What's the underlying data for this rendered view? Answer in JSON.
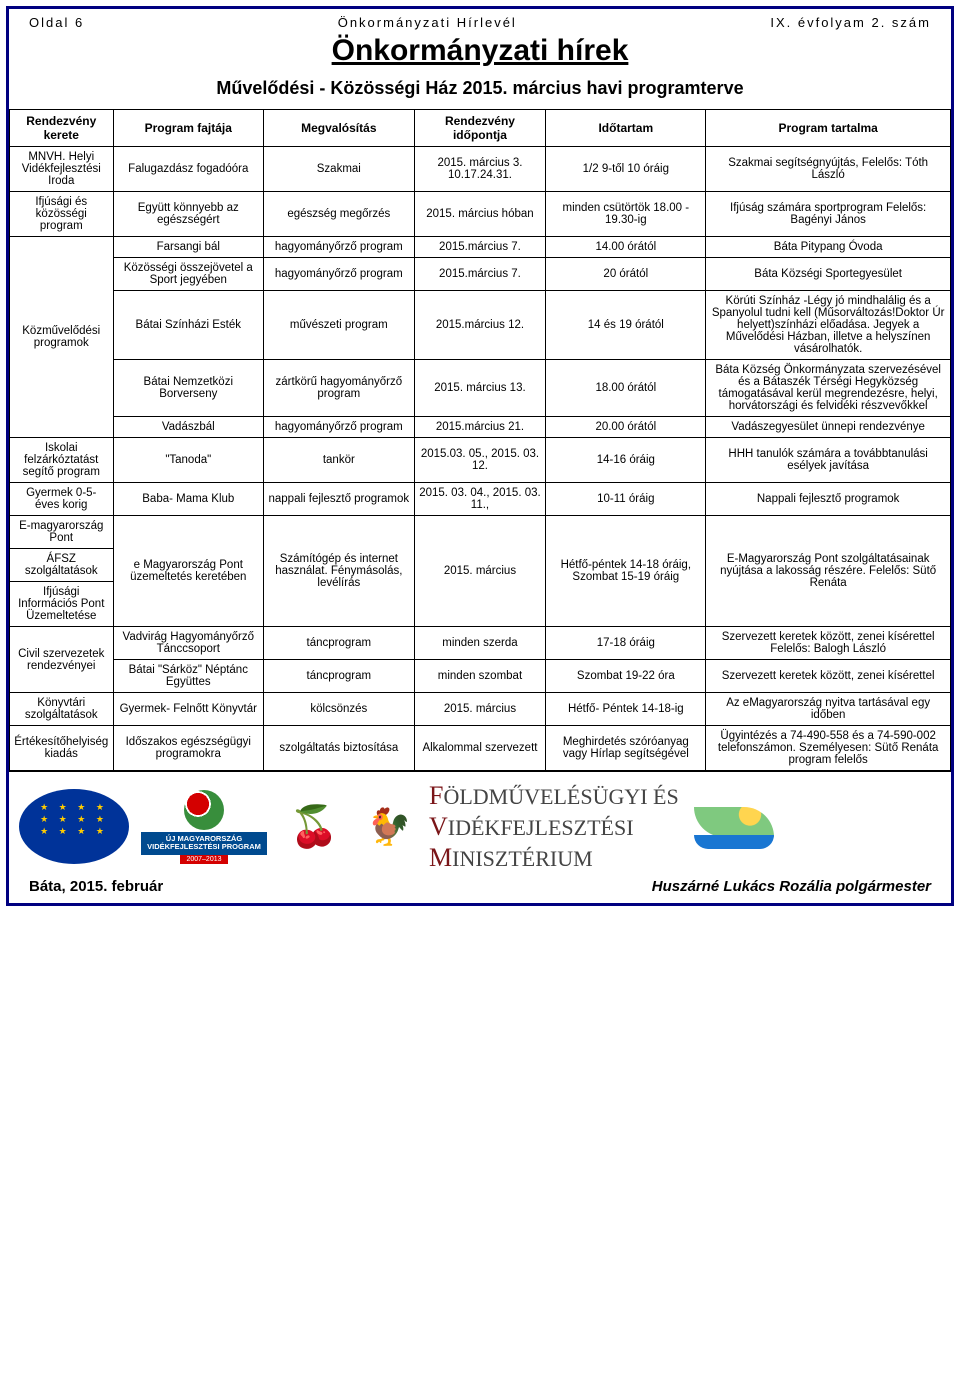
{
  "header": {
    "page_label": "Oldal 6",
    "center": "Önkormányzati Hírlevél",
    "issue": "IX. évfolyam 2. szám"
  },
  "title": "Önkormányzati hírek",
  "subtitle": "Művelődési - Közösségi Ház 2015. március havi programterve",
  "columns": [
    "Rendezvény kerete",
    "Program fajtája",
    "Megvalósítás",
    "Rendezvény időpontja",
    "Időtartam",
    "Program tartalma"
  ],
  "rows": [
    {
      "kerete": "MNVH. Helyi Vidékfejlesztési Iroda",
      "fajta": "Falugazdász fogadóóra",
      "megv": "Szakmai",
      "ido": "2015. március 3. 10.17.24.31.",
      "tartam": "1/2 9-től 10 óráig",
      "tartalma": "Szakmai segítségnyújtás, Felelős: Tóth László"
    },
    {
      "kerete": "Ifjúsági és közösségi program",
      "fajta": "Együtt könnyebb az egészségért",
      "megv": "egészség megőrzés",
      "ido": "2015. március hóban",
      "tartam": "minden csütörtök 18.00 - 19.30-ig",
      "tartalma": "Ifjúság számára sportprogram Felelős: Bagényi János"
    }
  ],
  "koz_kerete": "Közművelődési programok",
  "koz_rows": [
    {
      "fajta": "Farsangi bál",
      "megv": "hagyományőrző program",
      "ido": "2015.március 7.",
      "tartam": "14.00 órától",
      "tartalma": "Báta Pitypang Óvoda"
    },
    {
      "fajta": "Közösségi összejövetel a Sport jegyében",
      "megv": "hagyományőrző program",
      "ido": "2015.március 7.",
      "tartam": "20 órától",
      "tartalma": "Báta Községi Sportegyesület"
    },
    {
      "fajta": "Bátai Színházi Esték",
      "megv": "művészeti program",
      "ido": "2015.március 12.",
      "tartam": "14 és 19 órától",
      "tartalma": "Körúti Színház -Légy jó mindhalálig és a Spanyolul tudni kell (Műsorváltozás!Doktor Úr helyett)színházi előadása. Jegyek a Művelődési Házban, illetve a helyszínen vásárolhatók."
    },
    {
      "fajta": "Bátai Nemzetközi Borverseny",
      "megv": "zártkörű hagyományőrző program",
      "ido": "2015. március 13.",
      "tartam": "18.00 órától",
      "tartalma": "Báta Község Önkormányzata szervezésével és a Bátaszék Térségi Hegyközség támogatásával kerül megrendezésre, helyi, horvátországi és felvidéki részvevőkkel"
    },
    {
      "fajta": "Vadászbál",
      "megv": "hagyományőrző program",
      "ido": "2015.március 21.",
      "tartam": "20.00 órától",
      "tartalma": "Vadászegyesület ünnepi rendezvénye"
    }
  ],
  "more": [
    {
      "kerete": "Iskolai felzárkóztatást segítő program",
      "fajta": "\"Tanoda\"",
      "megv": "tankör",
      "ido": "2015.03. 05., 2015. 03. 12.",
      "tartam": "14-16 óráig",
      "tartalma": "HHH tanulók számára a továbbtanulási esélyek javítása"
    },
    {
      "kerete": "Gyermek 0-5-éves korig",
      "fajta": "Baba- Mama Klub",
      "megv": "nappali fejlesztő programok",
      "ido": "2015. 03. 04., 2015. 03. 11.,",
      "tartam": "10-11 óráig",
      "tartalma": "Nappali fejlesztő programok"
    }
  ],
  "triple_kerete": [
    "E-magyarország Pont",
    "ÁFSZ szolgáltatások",
    "Ifjúsági Információs Pont Üzemeltetése"
  ],
  "triple_row": {
    "fajta": "e Magyarország Pont üzemeltetés keretében",
    "megv": "Számítógép és internet használat. Fénymásolás, levélírás",
    "ido": "2015. március",
    "tartam": "Hétfő-péntek 14-18 óráig, Szombat 15-19 óráig",
    "tartalma": "E-Magyarország Pont szolgáltatásainak nyújtása a lakosság részére. Felelős: Sütő Renáta"
  },
  "civil_kerete": "Civil szervezetek rendezvényei",
  "civil_rows": [
    {
      "fajta": "Vadvirág Hagyományőrző Tánccsoport",
      "megv": "táncprogram",
      "ido": "minden szerda",
      "tartam": "17-18 óráig",
      "tartalma": "Szervezett keretek között, zenei kísérettel Felelős: Balogh László"
    },
    {
      "fajta": "Bátai \"Sárköz\" Néptánc Együttes",
      "megv": "táncprogram",
      "ido": "minden szombat",
      "tartam": "Szombat 19-22 óra",
      "tartalma": "Szervezett keretek között, zenei kísérettel"
    }
  ],
  "last": [
    {
      "kerete": "Könyvtári szolgáltatások",
      "fajta": "Gyermek- Felnőtt Könyvtár",
      "megv": "kölcsönzés",
      "ido": "2015. március",
      "tartam": "Hétfő- Péntek 14-18-ig",
      "tartalma": "Az eMagyarország nyitva tartásával egy időben"
    },
    {
      "kerete": "Értékesítőhelyiség kiadás",
      "fajta": "Időszakos egészségügyi programokra",
      "megv": "szolgáltatás biztosítása",
      "ido": "Alkalommal szervezett",
      "tartam": "Meghirdetés szóróanyag vagy Hírlap segítségével",
      "tartalma": "Ügyintézés a 74-490-558 és a 74-590-002 telefonszámon. Személyesen: Sütő Renáta program felelős"
    }
  ],
  "logos": {
    "umvp_line1": "ÚJ MAGYARORSZÁG",
    "umvp_line2": "VIDÉKFEJLESZTÉSI PROGRAM",
    "umvp_years": "2007–2013",
    "ministry_line1_init": "F",
    "ministry_line1": "ÖLDMŰVELÉSÜGYI ÉS",
    "ministry_line2_init": "V",
    "ministry_line2": "IDÉKFEJLESZTÉSI",
    "ministry_line3_init": "M",
    "ministry_line3": "INISZTÉRIUM"
  },
  "footer": {
    "left": "Báta, 2015. február",
    "right": "Huszárné Lukács Rozália polgármester"
  },
  "colors": {
    "border": "#000080",
    "eu_blue": "#003399",
    "eu_gold": "#ffcc00"
  }
}
